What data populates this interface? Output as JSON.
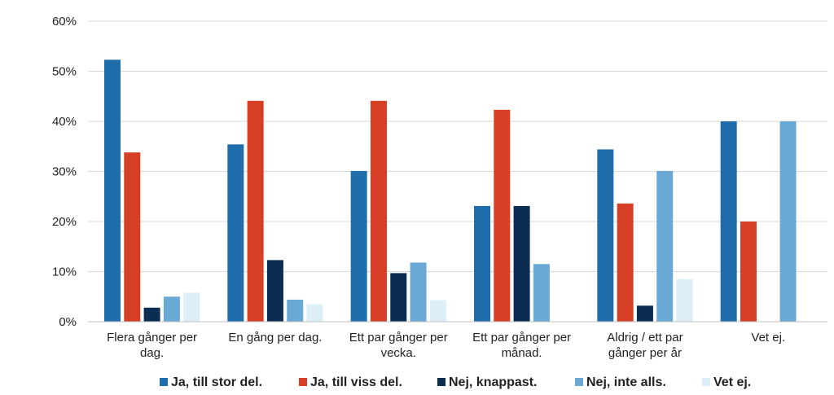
{
  "chart_data": {
    "type": "bar",
    "categories": [
      [
        "Flera gånger per",
        "dag."
      ],
      [
        "En gång per dag."
      ],
      [
        "Ett par gånger per",
        "vecka."
      ],
      [
        "Ett par gånger per",
        "månad."
      ],
      [
        "Aldrig / ett par",
        "gånger per år"
      ],
      [
        "Vet ej."
      ]
    ],
    "series": [
      {
        "name": "Ja, till stor del.",
        "color": "#1f6eab",
        "values": [
          52.3,
          35.4,
          30.1,
          23.1,
          34.4,
          40.0
        ]
      },
      {
        "name": "Ja, till viss del.",
        "color": "#d63f26",
        "values": [
          33.8,
          44.1,
          44.1,
          42.3,
          23.6,
          20.0
        ]
      },
      {
        "name": "Nej, knappast.",
        "color": "#0c2d52",
        "values": [
          2.8,
          12.3,
          9.7,
          23.1,
          3.2,
          0
        ]
      },
      {
        "name": "Nej, inte alls.",
        "color": "#6aa9d6",
        "values": [
          5.0,
          4.4,
          11.8,
          11.5,
          30.1,
          40.0
        ]
      },
      {
        "name": "Vet ej.",
        "color": "#dceef8",
        "values": [
          5.8,
          3.5,
          4.3,
          0,
          8.5,
          0
        ]
      }
    ],
    "ylim": [
      0,
      60
    ],
    "yticks": [
      "0%",
      "10%",
      "20%",
      "30%",
      "40%",
      "50%",
      "60%"
    ],
    "grid": true,
    "legend_position": "bottom",
    "title": "",
    "xlabel": "",
    "ylabel": ""
  }
}
